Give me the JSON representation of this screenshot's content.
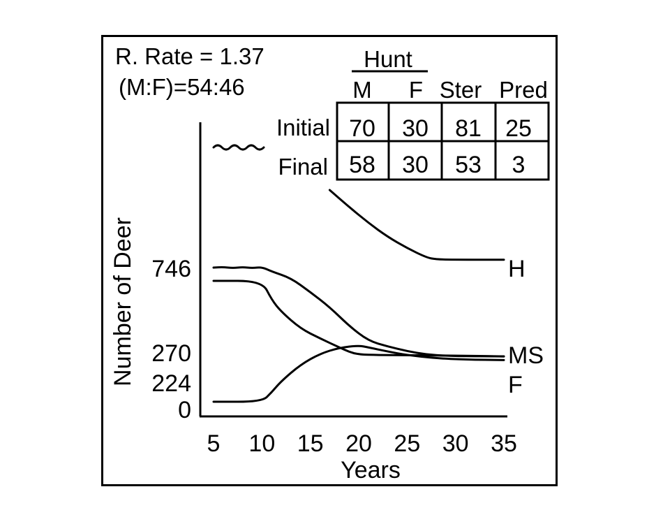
{
  "header": {
    "rate_line": "R. Rate = 1.37",
    "ratio_line": "(M:F)=54:46"
  },
  "table": {
    "group_label": "Hunt",
    "columns": [
      "M",
      "F",
      "Ster",
      "Pred"
    ],
    "rows": [
      {
        "label": "Initial",
        "values": [
          "70",
          "30",
          "81",
          "25"
        ]
      },
      {
        "label": "Final",
        "values": [
          "58",
          "30",
          "53",
          "3"
        ]
      }
    ]
  },
  "chart_data": {
    "type": "line",
    "xlabel": "Years",
    "ylabel": "Number of Deer",
    "x_ticks": [
      5,
      10,
      15,
      20,
      25,
      30,
      35
    ],
    "y_ticks": [
      0,
      224,
      270,
      746
    ],
    "xlim": [
      5,
      35
    ],
    "ylim": [
      0,
      746
    ],
    "axis_break_on_y": true,
    "series": [
      {
        "name": "H",
        "points": [
          [
            17,
            1160
          ],
          [
            19,
            1070
          ],
          [
            21,
            985
          ],
          [
            23,
            910
          ],
          [
            25,
            850
          ],
          [
            27,
            800
          ],
          [
            28,
            790
          ],
          [
            30,
            788
          ],
          [
            35,
            788
          ]
        ]
      },
      {
        "name": "MS",
        "points": [
          [
            5,
            746
          ],
          [
            6,
            749
          ],
          [
            7,
            743
          ],
          [
            8,
            749
          ],
          [
            9,
            743
          ],
          [
            10,
            749
          ],
          [
            11,
            725
          ],
          [
            13,
            690
          ],
          [
            15,
            615
          ],
          [
            17,
            535
          ],
          [
            19,
            435
          ],
          [
            21,
            355
          ],
          [
            23,
            325
          ],
          [
            25,
            300
          ],
          [
            27,
            282
          ],
          [
            29,
            275
          ],
          [
            31,
            273
          ],
          [
            35,
            272
          ]
        ]
      },
      {
        "name": "",
        "points": [
          [
            5,
            675
          ],
          [
            10,
            675
          ],
          [
            11,
            575
          ],
          [
            12,
            510
          ],
          [
            14,
            420
          ],
          [
            16,
            368
          ],
          [
            18,
            320
          ],
          [
            19,
            296
          ],
          [
            20,
            282
          ],
          [
            22,
            279
          ],
          [
            25,
            278
          ],
          [
            30,
            276
          ],
          [
            35,
            272
          ]
        ]
      },
      {
        "name": "F",
        "points": [
          [
            5,
            30
          ],
          [
            10,
            30
          ],
          [
            11,
            80
          ],
          [
            12,
            140
          ],
          [
            14,
            228
          ],
          [
            16,
            286
          ],
          [
            18,
            318
          ],
          [
            20,
            330
          ],
          [
            21,
            320
          ],
          [
            23,
            298
          ],
          [
            25,
            279
          ],
          [
            28,
            262
          ],
          [
            31,
            255
          ],
          [
            35,
            252
          ]
        ]
      }
    ]
  }
}
